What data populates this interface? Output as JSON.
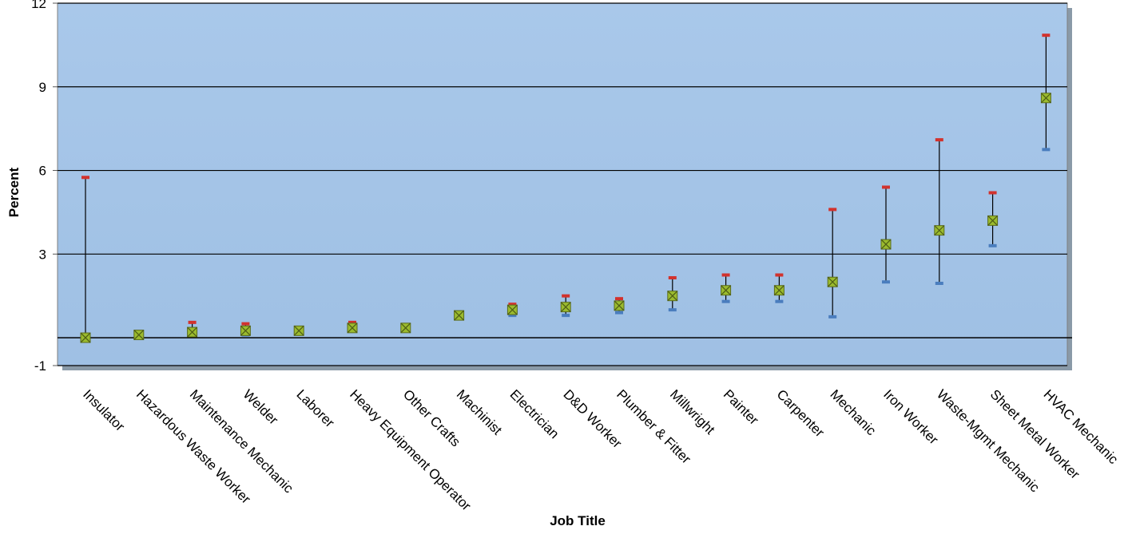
{
  "chart_data": {
    "type": "scatter",
    "xlabel": "Job Title",
    "ylabel": "Percent",
    "ylim": [
      -1,
      12
    ],
    "yticks": [
      -1,
      3,
      6,
      9,
      12
    ],
    "grid": true,
    "legend": "none",
    "categories": [
      "Insulator",
      "Hazardous Waste Worker",
      "Maintenance Mechanic",
      "Welder",
      "Laborer",
      "Heavy Equipment Operator",
      "Other Crafts",
      "Machinist",
      "Electrician",
      "D&D Worker",
      "Plumber & Fitter",
      "Millwright",
      "Painter",
      "Carpenter",
      "Mechanic",
      "Iron Worker",
      "Waste-Mgmt Mechanic",
      "Sheet Metal Worker",
      "HVAC Mechanic"
    ],
    "series": [
      {
        "values": [
          0.0,
          0.1,
          0.2,
          0.25,
          0.25,
          0.35,
          0.35,
          0.8,
          1.0,
          1.1,
          1.15,
          1.5,
          1.7,
          1.7,
          2.0,
          3.35,
          3.85,
          4.2,
          8.6
        ],
        "lower": [
          0.0,
          0.1,
          0.1,
          0.1,
          0.2,
          0.25,
          0.3,
          0.7,
          0.8,
          0.8,
          0.9,
          1.0,
          1.3,
          1.3,
          0.75,
          2.0,
          1.95,
          3.3,
          6.75
        ],
        "upper": [
          5.75,
          0.1,
          0.55,
          0.5,
          0.3,
          0.55,
          0.4,
          0.9,
          1.2,
          1.5,
          1.4,
          2.15,
          2.25,
          2.25,
          4.6,
          5.4,
          7.1,
          5.2,
          10.85
        ]
      }
    ],
    "colors": {
      "plot_bg": "#a6c6e8",
      "marker": "#9bbb2e",
      "upper_cap": "#d2322d",
      "lower_cap": "#4a7dbe",
      "whisker": "#000000",
      "grid": "#000000"
    }
  }
}
